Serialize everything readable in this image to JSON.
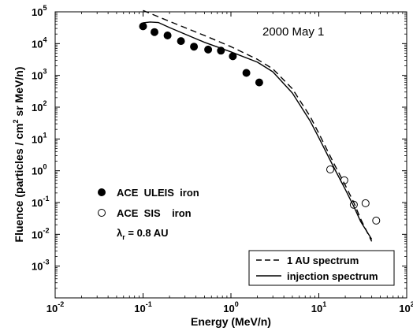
{
  "chart_data": {
    "type": "scatter",
    "title": "",
    "annotation": "2000 May 1",
    "xlabel": "Energy  (MeV/n)",
    "ylabel": {
      "prefix": "Fluence  (particles / cm",
      "sup": "2",
      "suffix": " sr MeV/n)"
    },
    "x_scale": "log",
    "y_scale": "log",
    "xlim": [
      0.01,
      100
    ],
    "ylim": [
      0.0001,
      100000
    ],
    "x_ticks": [
      {
        "value": 0.01,
        "base": "10",
        "exp": "-2"
      },
      {
        "value": 0.1,
        "base": "10",
        "exp": "-1"
      },
      {
        "value": 1,
        "base": "10",
        "exp": "0"
      },
      {
        "value": 10,
        "base": "10",
        "exp": "1"
      },
      {
        "value": 100,
        "base": "10",
        "exp": "2"
      }
    ],
    "y_ticks": [
      {
        "value": 0.001,
        "base": "10",
        "exp": "-3"
      },
      {
        "value": 0.01,
        "base": "10",
        "exp": "-2"
      },
      {
        "value": 0.1,
        "base": "10",
        "exp": "-1"
      },
      {
        "value": 1,
        "base": "10",
        "exp": "0"
      },
      {
        "value": 10,
        "base": "10",
        "exp": "1"
      },
      {
        "value": 100,
        "base": "10",
        "exp": "2"
      },
      {
        "value": 1000,
        "base": "10",
        "exp": "3"
      },
      {
        "value": 10000,
        "base": "10",
        "exp": "4"
      },
      {
        "value": 100000,
        "base": "10",
        "exp": "5"
      }
    ],
    "grid": false,
    "series": [
      {
        "name": "ACE  ULEIS  iron",
        "style": "filled-circle",
        "x": [
          0.1,
          0.135,
          0.19,
          0.27,
          0.38,
          0.55,
          0.77,
          1.05,
          1.5,
          2.1
        ],
        "y": [
          35000,
          23000,
          18000,
          12000,
          8000,
          6500,
          6000,
          4000,
          1200,
          600
        ]
      },
      {
        "name": "ACE  SIS    iron",
        "style": "open-circle",
        "x": [
          13.5,
          19.5,
          25,
          34,
          45
        ],
        "y": [
          1.1,
          0.5,
          0.085,
          0.095,
          0.027
        ]
      },
      {
        "name": "1 AU spectrum",
        "style": "dashed-line",
        "x": [
          0.1,
          0.2,
          0.5,
          1.0,
          2.0,
          3.0,
          5.0,
          8.0,
          10,
          15,
          20,
          25,
          30,
          40
        ],
        "y": [
          110000,
          50000,
          18000,
          8000,
          3200,
          1600,
          380,
          50,
          15,
          1.6,
          0.35,
          0.1,
          0.03,
          0.006
        ]
      },
      {
        "name": "injection spectrum",
        "style": "solid-line",
        "x": [
          0.1,
          0.12,
          0.15,
          0.2,
          0.5,
          1.0,
          2.0,
          3.0,
          5.0,
          8.0,
          10,
          15,
          20,
          25,
          30,
          40
        ],
        "y": [
          45000,
          48000,
          46000,
          32000,
          11000,
          5500,
          2600,
          1300,
          280,
          36,
          11,
          1.2,
          0.26,
          0.075,
          0.025,
          0.007
        ]
      }
    ],
    "lambda_label": {
      "symbol": "λ",
      "sub": "r",
      "text": " = 0.8 AU"
    },
    "legend_position": "bottom-right"
  }
}
